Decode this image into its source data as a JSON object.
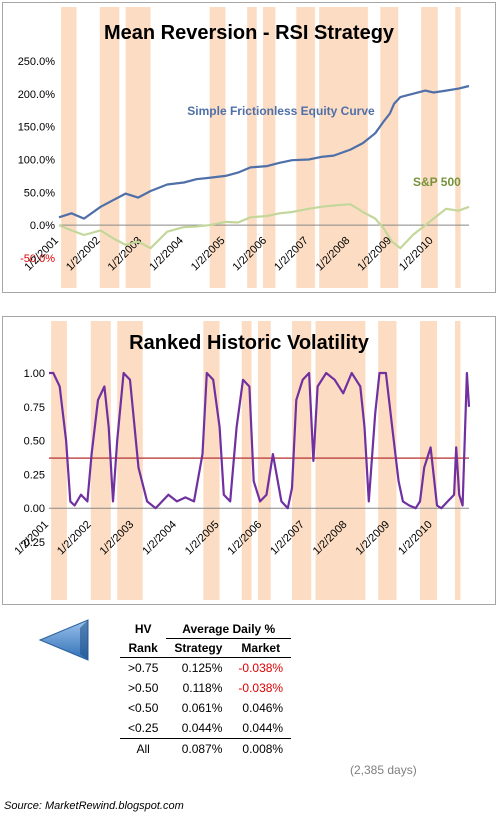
{
  "colors": {
    "strategy": "#4f6fa8",
    "sp500": "#c4d79b",
    "volatility": "#7030a0",
    "threshold": "#c0504d",
    "shade": "#fbd4b4",
    "negative_text": "#e00000",
    "arrow": "#4a86c8"
  },
  "chart_data": [
    {
      "type": "line",
      "title": "Mean Reversion - RSI Strategy",
      "xlabel": "",
      "ylabel": "",
      "ylim": [
        -50,
        250
      ],
      "y_ticks": [
        "-50.0%",
        "0.0%",
        "50.0%",
        "100.0%",
        "150.0%",
        "200.0%",
        "250.0%"
      ],
      "y_tick_values": [
        -50,
        0,
        50,
        100,
        150,
        200,
        250
      ],
      "x_range": [
        2001.0,
        2010.85
      ],
      "x_tick_labels": [
        "1/2/2001",
        "1/2/2002",
        "1/2/2003",
        "1/2/2004",
        "1/2/2005",
        "1/2/2006",
        "1/2/2007",
        "1/2/2008",
        "1/2/2009",
        "1/2/2010"
      ],
      "x_tick_values": [
        2001,
        2002,
        2003,
        2004,
        2005,
        2006,
        2007,
        2008,
        2009,
        2010
      ],
      "grid": false,
      "annotations": [
        {
          "text": "Simple Frictionless Equity Curve",
          "series": "strategy"
        },
        {
          "text": "S&P 500",
          "series": "sp500"
        }
      ],
      "shaded_periods": [
        [
          2001.05,
          2001.42
        ],
        [
          2001.98,
          2002.45
        ],
        [
          2002.6,
          2003.2
        ],
        [
          2004.62,
          2005.0
        ],
        [
          2005.52,
          2005.75
        ],
        [
          2005.9,
          2006.2
        ],
        [
          2006.7,
          2007.15
        ],
        [
          2007.25,
          2008.42
        ],
        [
          2008.72,
          2009.15
        ],
        [
          2009.7,
          2010.1
        ],
        [
          2010.52,
          2010.65
        ]
      ],
      "series": [
        {
          "key": "strategy",
          "x": [
            2001.0,
            2001.3,
            2001.6,
            2002.0,
            2002.3,
            2002.6,
            2002.9,
            2003.2,
            2003.6,
            2004.0,
            2004.3,
            2004.6,
            2005.0,
            2005.3,
            2005.6,
            2006.0,
            2006.3,
            2006.6,
            2007.0,
            2007.3,
            2007.6,
            2008.0,
            2008.3,
            2008.6,
            2008.8,
            2008.95,
            2009.05,
            2009.2,
            2009.5,
            2009.8,
            2010.0,
            2010.3,
            2010.6,
            2010.85
          ],
          "y": [
            12,
            18,
            10,
            28,
            38,
            48,
            42,
            52,
            62,
            65,
            70,
            72,
            75,
            80,
            88,
            90,
            95,
            99,
            100,
            104,
            106,
            115,
            125,
            140,
            158,
            170,
            185,
            195,
            200,
            205,
            202,
            205,
            208,
            212
          ]
        },
        {
          "key": "sp500",
          "x": [
            2001.0,
            2001.3,
            2001.6,
            2002.0,
            2002.3,
            2002.6,
            2002.9,
            2003.2,
            2003.6,
            2004.0,
            2004.3,
            2004.6,
            2005.0,
            2005.3,
            2005.6,
            2006.0,
            2006.3,
            2006.6,
            2007.0,
            2007.3,
            2007.6,
            2008.0,
            2008.3,
            2008.6,
            2008.8,
            2009.0,
            2009.2,
            2009.5,
            2009.8,
            2010.0,
            2010.3,
            2010.6,
            2010.85
          ],
          "y": [
            0,
            -8,
            -15,
            -8,
            -20,
            -30,
            -25,
            -35,
            -10,
            -3,
            -2,
            0,
            5,
            4,
            12,
            14,
            18,
            20,
            25,
            28,
            30,
            32,
            20,
            10,
            -5,
            -25,
            -35,
            -15,
            0,
            10,
            25,
            22,
            28
          ]
        }
      ]
    },
    {
      "type": "line",
      "title": "Ranked Historic Volatility",
      "xlabel": "",
      "ylabel": "",
      "ylim": [
        -0.25,
        1.0
      ],
      "y_ticks": [
        "-0.25",
        "0.00",
        "0.25",
        "0.50",
        "0.75",
        "1.00"
      ],
      "y_tick_values": [
        -0.25,
        0,
        0.25,
        0.5,
        0.75,
        1.0
      ],
      "x_range": [
        2001.0,
        2010.85
      ],
      "x_tick_labels": [
        "1/2/2001",
        "1/2/2002",
        "1/2/2003",
        "1/2/2004",
        "1/2/2005",
        "1/2/2006",
        "1/2/2007",
        "1/2/2008",
        "1/2/2009",
        "1/2/2010"
      ],
      "x_tick_values": [
        2001,
        2002,
        2003,
        2004,
        2005,
        2006,
        2007,
        2008,
        2009,
        2010
      ],
      "threshold": 0.37,
      "grid": false,
      "shaded_periods": [
        [
          2001.05,
          2001.42
        ],
        [
          2001.98,
          2002.45
        ],
        [
          2002.6,
          2003.2
        ],
        [
          2004.62,
          2005.0
        ],
        [
          2005.52,
          2005.75
        ],
        [
          2005.9,
          2006.2
        ],
        [
          2006.7,
          2007.15
        ],
        [
          2007.25,
          2008.42
        ],
        [
          2008.72,
          2009.15
        ],
        [
          2009.7,
          2010.1
        ],
        [
          2010.52,
          2010.65
        ]
      ],
      "series": [
        {
          "key": "volatility",
          "x": [
            2001.0,
            2001.1,
            2001.25,
            2001.4,
            2001.5,
            2001.6,
            2001.75,
            2001.9,
            2002.0,
            2002.15,
            2002.3,
            2002.4,
            2002.5,
            2002.6,
            2002.75,
            2002.9,
            2003.1,
            2003.3,
            2003.5,
            2003.8,
            2004.0,
            2004.2,
            2004.4,
            2004.6,
            2004.7,
            2004.85,
            2005.0,
            2005.1,
            2005.25,
            2005.4,
            2005.55,
            2005.7,
            2005.8,
            2005.95,
            2006.1,
            2006.25,
            2006.45,
            2006.6,
            2006.7,
            2006.8,
            2006.95,
            2007.1,
            2007.2,
            2007.3,
            2007.5,
            2007.7,
            2007.9,
            2008.1,
            2008.3,
            2008.4,
            2008.5,
            2008.65,
            2008.75,
            2008.9,
            2009.05,
            2009.2,
            2009.3,
            2009.45,
            2009.6,
            2009.7,
            2009.8,
            2009.95,
            2010.1,
            2010.2,
            2010.35,
            2010.5,
            2010.55,
            2010.62,
            2010.7,
            2010.8,
            2010.85
          ],
          "y": [
            1.0,
            1.0,
            0.9,
            0.5,
            0.05,
            0.02,
            0.1,
            0.05,
            0.4,
            0.8,
            0.9,
            0.6,
            0.05,
            0.5,
            1.0,
            0.95,
            0.3,
            0.05,
            0.0,
            0.1,
            0.05,
            0.08,
            0.05,
            0.4,
            1.0,
            0.95,
            0.6,
            0.1,
            0.05,
            0.6,
            0.95,
            0.9,
            0.2,
            0.05,
            0.1,
            0.4,
            0.05,
            0.0,
            0.15,
            0.8,
            0.95,
            1.0,
            0.35,
            0.9,
            1.0,
            0.95,
            0.85,
            1.0,
            0.9,
            0.6,
            0.05,
            0.7,
            1.0,
            1.0,
            0.6,
            0.2,
            0.05,
            0.02,
            0.0,
            0.05,
            0.3,
            0.45,
            0.02,
            0.0,
            0.05,
            0.1,
            0.45,
            0.1,
            0.02,
            1.0,
            0.75
          ]
        }
      ]
    }
  ],
  "nav": {
    "back_button": "back-arrow"
  },
  "table": {
    "col_hv": "HV",
    "group_header": "Average Daily %",
    "col_rank": "Rank",
    "col_strategy": "Strategy",
    "col_market": "Market",
    "rows": [
      {
        "rank": ">0.75",
        "strategy": "0.125%",
        "market": "-0.038%"
      },
      {
        "rank": ">0.50",
        "strategy": "0.118%",
        "market": "-0.038%"
      },
      {
        "rank": "<0.50",
        "strategy": "0.061%",
        "market": "0.046%"
      },
      {
        "rank": "<0.25",
        "strategy": "0.044%",
        "market": "0.044%"
      },
      {
        "rank": "All",
        "strategy": "0.087%",
        "market": "0.008%"
      }
    ],
    "days_note": "(2,385 days)"
  },
  "source": "Source:  MarketRewind.blogspot.com"
}
